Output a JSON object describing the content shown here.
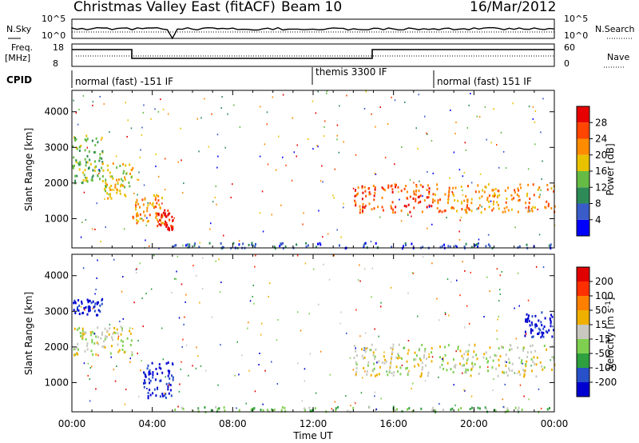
{
  "header": {
    "title": "Christmas Valley East (fitACF)",
    "beam": "Beam 10",
    "date": "16/Mar/2012"
  },
  "top_panels": {
    "nsky_label": "N.Sky",
    "nsearch_label": "N.Search",
    "noise_ticks": [
      "10^5",
      "10^0"
    ],
    "freq_label": "Freq.",
    "freq_unit": "[MHz]",
    "freq_ticks": [
      "18",
      "8"
    ],
    "nave_label": "Nave",
    "nave_ticks": [
      "60",
      "0"
    ],
    "cpid_label": "CPID",
    "cpid_segments": [
      {
        "label": "normal (fast) -151 IF",
        "start_h": 0,
        "end_h": 12
      },
      {
        "label": "themis 3300 IF",
        "start_h": 12,
        "end_h": 18
      },
      {
        "label": "normal (fast) 151 IF",
        "start_h": 18,
        "end_h": 24
      }
    ]
  },
  "axes": {
    "xlabel": "Time UT",
    "ylabel": "Slant Range [km]",
    "xticks": [
      "00:00",
      "04:00",
      "08:00",
      "12:00",
      "16:00",
      "20:00",
      "00:00"
    ],
    "yticks": [
      "1000",
      "2000",
      "3000",
      "4000"
    ],
    "yrange_km": [
      180,
      4600
    ]
  },
  "power_scale": {
    "label": "Power [dB]",
    "ticks": [
      "4",
      "8",
      "12",
      "16",
      "20",
      "24",
      "28"
    ],
    "colors": [
      "#0000ff",
      "#3a5cc8",
      "#2e8b57",
      "#66bb44",
      "#e8c200",
      "#ff8c00",
      "#ff4500",
      "#e60000"
    ]
  },
  "velocity_scale": {
    "label": "Velocity [m s",
    "label_sup": "-1",
    "label_end": "]",
    "ticks": [
      "200",
      "100",
      "50",
      "15",
      "-15",
      "-50",
      "-100",
      "-200"
    ],
    "colors": [
      "#0000d0",
      "#2850c8",
      "#2ea040",
      "#7fd050",
      "#c8c8c0",
      "#f0b000",
      "#ff8000",
      "#ff3000",
      "#e00000"
    ]
  },
  "chart_data": {
    "type": "heatmap",
    "x_unit": "hours UT",
    "y_unit": "km",
    "panels": [
      {
        "name": "Power",
        "regions": [
          {
            "t0": 0.0,
            "t1": 1.5,
            "r0": 2000,
            "r1": 3400,
            "level": 3
          },
          {
            "t0": 1.5,
            "t1": 3.0,
            "r0": 1600,
            "r1": 2600,
            "level": 4
          },
          {
            "t0": 3.0,
            "t1": 4.5,
            "r0": 900,
            "r1": 1700,
            "level": 5
          },
          {
            "t0": 4.2,
            "t1": 5.0,
            "r0": 700,
            "r1": 1300,
            "level": 7
          },
          {
            "t0": 14.0,
            "t1": 18.0,
            "r0": 1200,
            "r1": 2000,
            "level": 6
          },
          {
            "t0": 18.0,
            "t1": 24.0,
            "r0": 1200,
            "r1": 2000,
            "level": 5
          },
          {
            "t0": 5.0,
            "t1": 24.0,
            "r0": 200,
            "r1": 350,
            "level": 1
          }
        ]
      },
      {
        "name": "Velocity",
        "regions": [
          {
            "t0": 0.0,
            "t1": 1.5,
            "r0": 2900,
            "r1": 3400,
            "level": 0
          },
          {
            "t0": 0.0,
            "t1": 3.0,
            "r0": 1800,
            "r1": 2600,
            "level": 4
          },
          {
            "t0": 3.5,
            "t1": 5.0,
            "r0": 600,
            "r1": 1600,
            "level": 0
          },
          {
            "t0": 14.0,
            "t1": 24.0,
            "r0": 1200,
            "r1": 2100,
            "level": 4
          },
          {
            "t0": 22.5,
            "t1": 24.0,
            "r0": 2300,
            "r1": 3000,
            "level": 0
          },
          {
            "t0": 5.0,
            "t1": 24.0,
            "r0": 200,
            "r1": 350,
            "level": 3
          }
        ]
      }
    ]
  }
}
